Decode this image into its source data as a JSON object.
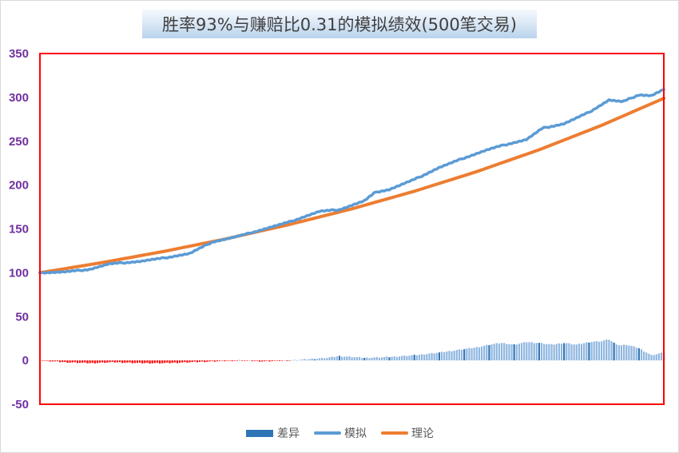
{
  "chart_data": {
    "type": "line",
    "title": "胜率93%与赚赔比0.31的模拟绩效(500笔交易)",
    "xlabel": "",
    "ylabel": "",
    "ylim": [
      -50,
      350
    ],
    "yticks": [
      "350",
      "300",
      "250",
      "200",
      "150",
      "100",
      "50",
      "0",
      "-50"
    ],
    "grid": false,
    "legend_position": "bottom",
    "x_range": [
      0,
      500
    ],
    "series": [
      {
        "name": "差异",
        "kind": "bar",
        "color": "#2e75b6",
        "negative_color": "#ff0000",
        "x": [
          0,
          10,
          20,
          40,
          60,
          80,
          100,
          120,
          140,
          160,
          180,
          200,
          220,
          230,
          240,
          260,
          280,
          300,
          320,
          340,
          350,
          360,
          370,
          380,
          390,
          400,
          410,
          420,
          430,
          440,
          450,
          456,
          460,
          465,
          470,
          480,
          490,
          500
        ],
        "values": [
          0,
          -1,
          -2,
          -3,
          -2,
          -3,
          -3,
          -2,
          -1,
          0,
          -1,
          0,
          2,
          3,
          5,
          3,
          4,
          6,
          9,
          13,
          15,
          18,
          20,
          18,
          21,
          20,
          18,
          20,
          18,
          21,
          22,
          24,
          20,
          17,
          18,
          14,
          6,
          9
        ]
      },
      {
        "name": "模拟",
        "kind": "line",
        "color": "#5b9bd5",
        "x": [
          0,
          20,
          40,
          55,
          80,
          100,
          120,
          138,
          160,
          180,
          200,
          224,
          240,
          260,
          269,
          280,
          301,
          320,
          340,
          358,
          370,
          390,
          403,
          420,
          440,
          456,
          467,
          480,
          490,
          500
        ],
        "values": [
          100,
          101,
          104,
          110,
          113,
          117,
          122,
          135,
          142,
          150,
          158,
          170,
          172,
          182,
          192,
          195,
          207,
          220,
          231,
          240,
          245,
          252,
          265,
          270,
          283,
          297,
          295,
          303,
          302,
          309
        ]
      },
      {
        "name": "理论",
        "kind": "line",
        "color": "#ed7d31",
        "x": [
          0,
          50,
          100,
          150,
          200,
          250,
          300,
          350,
          400,
          450,
          500
        ],
        "values": [
          100,
          111.6,
          124.5,
          138.9,
          155.0,
          172.9,
          192.9,
          215.3,
          240.2,
          268.0,
          299.0
        ]
      }
    ]
  },
  "legend": {
    "items": [
      {
        "label": "差异",
        "color": "#2e75b6"
      },
      {
        "label": "模拟",
        "color": "#5b9bd5"
      },
      {
        "label": "理论",
        "color": "#ed7d31"
      }
    ]
  },
  "style": {
    "plot_border": "#ff0000",
    "frame_border": "#d9d9d9",
    "tick_color": "#7030a0"
  }
}
